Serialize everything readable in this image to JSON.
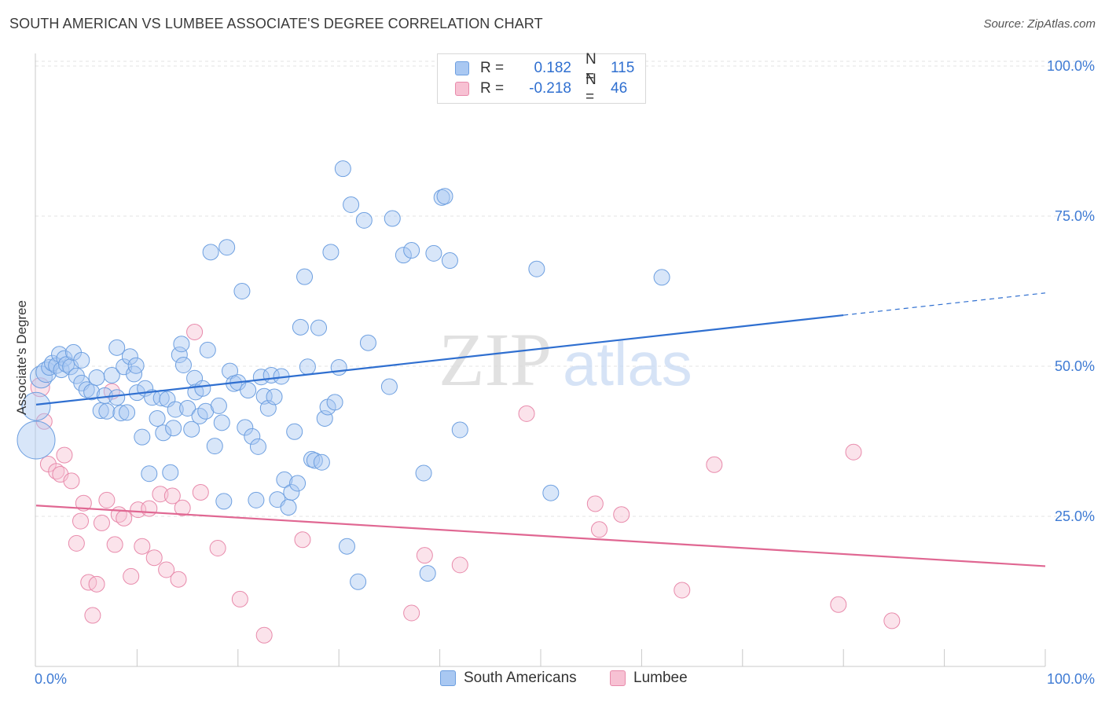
{
  "title": "SOUTH AMERICAN VS LUMBEE ASSOCIATE'S DEGREE CORRELATION CHART",
  "source": "Source: ZipAtlas.com",
  "watermark": {
    "zip": "ZIP",
    "atlas": "atlas"
  },
  "legend": {
    "rows": [
      {
        "r_label": "R =",
        "r_value": "0.182",
        "n_label": "N =",
        "n_value": "115",
        "color": "#a9c8f2",
        "border": "#6d9fe0"
      },
      {
        "r_label": "R =",
        "r_value": "-0.218",
        "n_label": "N =",
        "n_value": "46",
        "color": "#f7c1d3",
        "border": "#e88aab"
      }
    ]
  },
  "bottom_legend": [
    {
      "label": "South Americans",
      "color": "#a9c8f2",
      "border": "#6d9fe0"
    },
    {
      "label": "Lumbee",
      "color": "#f7c1d3",
      "border": "#e88aab"
    }
  ],
  "chart_data": {
    "type": "scatter",
    "ylabel": "Associate's Degree",
    "xlabel": "",
    "xlim": [
      0,
      100
    ],
    "ylim": [
      0,
      103
    ],
    "x_tick_labels": [
      "0.0%",
      "100.0%"
    ],
    "y_ticks": [
      25,
      50,
      75,
      100
    ],
    "y_tick_labels": [
      "25.0%",
      "50.0%",
      "75.0%",
      "100.0%"
    ],
    "grid": "horizontal-dashed",
    "series": [
      {
        "name": "South Americans",
        "color": "#6d9fe0",
        "fill": "#a9c8f2",
        "trend": {
          "x0": 0,
          "y0": 43.6,
          "x1": 80,
          "y1": 58.5,
          "dash_to_x": 100,
          "dash_to_y": 62.2,
          "color": "#2f6fd0"
        },
        "points": [
          [
            0,
            37.7,
            24
          ],
          [
            0,
            43.3,
            18
          ],
          [
            0.5,
            48.2,
            14
          ],
          [
            1,
            49.0,
            13
          ],
          [
            1.3,
            49.8,
            10
          ],
          [
            1.6,
            50.5,
            10
          ],
          [
            2.0,
            50.1,
            10
          ],
          [
            2.3,
            52.0,
            10
          ],
          [
            2.5,
            49.4,
            10
          ],
          [
            2.8,
            51.3,
            10
          ],
          [
            3.0,
            50.3,
            10
          ],
          [
            3.4,
            49.9,
            10
          ],
          [
            3.7,
            52.3,
            10
          ],
          [
            4.0,
            48.4,
            10
          ],
          [
            4.5,
            51.0,
            10
          ],
          [
            4.5,
            47.2,
            10
          ],
          [
            5.0,
            46.1,
            10
          ],
          [
            5.5,
            45.7,
            10
          ],
          [
            6.0,
            48.1,
            10
          ],
          [
            6.4,
            42.6,
            10
          ],
          [
            6.8,
            45.1,
            10
          ],
          [
            7.0,
            42.5,
            10
          ],
          [
            7.5,
            48.5,
            10
          ],
          [
            8.0,
            44.8,
            10
          ],
          [
            8.0,
            53.1,
            10
          ],
          [
            8.4,
            42.2,
            10
          ],
          [
            8.7,
            49.9,
            10
          ],
          [
            9.0,
            42.3,
            10
          ],
          [
            9.3,
            51.6,
            10
          ],
          [
            9.7,
            48.7,
            10
          ],
          [
            9.9,
            50.1,
            10
          ],
          [
            10.0,
            45.6,
            10
          ],
          [
            10.5,
            38.2,
            10
          ],
          [
            10.8,
            46.3,
            10
          ],
          [
            11.2,
            32.1,
            10
          ],
          [
            11.5,
            44.8,
            10
          ],
          [
            12.0,
            41.3,
            10
          ],
          [
            12.4,
            44.7,
            10
          ],
          [
            12.6,
            38.9,
            10
          ],
          [
            13.0,
            44.5,
            10
          ],
          [
            13.3,
            32.3,
            10
          ],
          [
            13.6,
            39.7,
            10
          ],
          [
            13.8,
            42.8,
            10
          ],
          [
            14.2,
            51.9,
            10
          ],
          [
            14.4,
            53.7,
            10
          ],
          [
            14.6,
            50.2,
            10
          ],
          [
            15.0,
            43.0,
            10
          ],
          [
            15.4,
            39.5,
            10
          ],
          [
            15.7,
            48.0,
            10
          ],
          [
            15.8,
            45.7,
            10
          ],
          [
            16.2,
            41.7,
            10
          ],
          [
            16.5,
            46.3,
            10
          ],
          [
            16.8,
            42.5,
            10
          ],
          [
            17.0,
            52.7,
            10
          ],
          [
            17.3,
            69.0,
            10
          ],
          [
            17.7,
            36.7,
            10
          ],
          [
            18.1,
            43.4,
            10
          ],
          [
            18.4,
            40.6,
            10
          ],
          [
            18.6,
            27.5,
            10
          ],
          [
            18.9,
            69.8,
            10
          ],
          [
            19.2,
            49.2,
            10
          ],
          [
            19.6,
            47.1,
            10
          ],
          [
            20.0,
            47.3,
            10
          ],
          [
            20.4,
            62.5,
            10
          ],
          [
            20.7,
            39.8,
            10
          ],
          [
            21.0,
            46.0,
            10
          ],
          [
            21.4,
            38.3,
            10
          ],
          [
            21.8,
            27.7,
            10
          ],
          [
            22.0,
            36.6,
            10
          ],
          [
            22.3,
            48.2,
            10
          ],
          [
            22.6,
            45.0,
            10
          ],
          [
            23.0,
            43.0,
            10
          ],
          [
            23.3,
            48.5,
            10
          ],
          [
            23.6,
            44.9,
            10
          ],
          [
            23.9,
            27.8,
            10
          ],
          [
            24.3,
            48.3,
            10
          ],
          [
            24.6,
            31.1,
            10
          ],
          [
            25.0,
            26.5,
            10
          ],
          [
            25.3,
            29.0,
            10
          ],
          [
            25.6,
            39.1,
            10
          ],
          [
            25.9,
            30.5,
            10
          ],
          [
            26.2,
            56.5,
            10
          ],
          [
            26.6,
            64.9,
            10
          ],
          [
            26.9,
            49.9,
            10
          ],
          [
            27.3,
            34.5,
            10
          ],
          [
            27.6,
            34.3,
            10
          ],
          [
            28.0,
            56.4,
            10
          ],
          [
            28.3,
            34.0,
            10
          ],
          [
            28.6,
            41.3,
            10
          ],
          [
            28.9,
            43.2,
            10
          ],
          [
            29.2,
            69.0,
            10
          ],
          [
            29.6,
            44.0,
            10
          ],
          [
            30.0,
            49.8,
            10
          ],
          [
            30.4,
            82.9,
            10
          ],
          [
            30.8,
            20.0,
            10
          ],
          [
            31.2,
            76.9,
            10
          ],
          [
            31.9,
            14.1,
            10
          ],
          [
            32.5,
            74.3,
            10
          ],
          [
            32.9,
            53.9,
            10
          ],
          [
            35.0,
            46.6,
            10
          ],
          [
            35.3,
            74.6,
            10
          ],
          [
            36.4,
            68.5,
            10
          ],
          [
            37.2,
            69.3,
            10
          ],
          [
            38.4,
            32.2,
            10
          ],
          [
            38.8,
            15.5,
            10
          ],
          [
            39.4,
            68.8,
            10
          ],
          [
            40.2,
            78.1,
            10
          ],
          [
            40.5,
            78.3,
            10
          ],
          [
            41.0,
            67.6,
            10
          ],
          [
            42.0,
            39.4,
            10
          ],
          [
            49.6,
            66.2,
            10
          ],
          [
            51.0,
            28.9,
            10
          ],
          [
            62.0,
            64.8,
            10
          ]
        ]
      },
      {
        "name": "Lumbee",
        "color": "#e88aab",
        "fill": "#f7c1d3",
        "trend": {
          "x0": 0,
          "y0": 26.8,
          "x1": 100,
          "y1": 16.7,
          "color": "#e06792"
        },
        "points": [
          [
            0.4,
            46.5,
            12
          ],
          [
            0.8,
            40.8,
            10
          ],
          [
            1.2,
            33.7,
            10
          ],
          [
            2.0,
            32.5,
            10
          ],
          [
            2.4,
            32.0,
            10
          ],
          [
            2.8,
            35.2,
            10
          ],
          [
            3.5,
            30.9,
            10
          ],
          [
            4.0,
            20.5,
            10
          ],
          [
            4.4,
            24.2,
            10
          ],
          [
            4.7,
            27.2,
            10
          ],
          [
            5.2,
            14.0,
            10
          ],
          [
            5.6,
            8.5,
            10
          ],
          [
            6.0,
            13.7,
            10
          ],
          [
            6.5,
            23.9,
            10
          ],
          [
            7.0,
            27.7,
            10
          ],
          [
            7.5,
            45.8,
            10
          ],
          [
            7.8,
            20.3,
            10
          ],
          [
            8.2,
            25.3,
            10
          ],
          [
            8.7,
            24.7,
            10
          ],
          [
            9.4,
            15.0,
            10
          ],
          [
            10.1,
            26.1,
            10
          ],
          [
            10.5,
            20.0,
            10
          ],
          [
            11.2,
            26.3,
            10
          ],
          [
            11.7,
            18.1,
            10
          ],
          [
            12.3,
            28.7,
            10
          ],
          [
            12.9,
            16.1,
            10
          ],
          [
            13.5,
            28.4,
            10
          ],
          [
            14.1,
            14.5,
            10
          ],
          [
            14.5,
            26.4,
            10
          ],
          [
            15.7,
            55.7,
            10
          ],
          [
            16.3,
            29.0,
            10
          ],
          [
            18.0,
            19.7,
            10
          ],
          [
            20.2,
            11.2,
            10
          ],
          [
            22.6,
            5.2,
            10
          ],
          [
            26.4,
            21.1,
            10
          ],
          [
            37.2,
            8.9,
            10
          ],
          [
            38.5,
            18.5,
            10
          ],
          [
            42.0,
            16.9,
            10
          ],
          [
            48.6,
            42.1,
            10
          ],
          [
            55.4,
            27.1,
            10
          ],
          [
            55.8,
            22.8,
            10
          ],
          [
            58.0,
            25.3,
            10
          ],
          [
            64.0,
            12.7,
            10
          ],
          [
            67.2,
            33.6,
            10
          ],
          [
            79.5,
            10.3,
            10
          ],
          [
            81.0,
            35.7,
            10
          ],
          [
            84.8,
            7.6,
            10
          ]
        ]
      }
    ]
  }
}
